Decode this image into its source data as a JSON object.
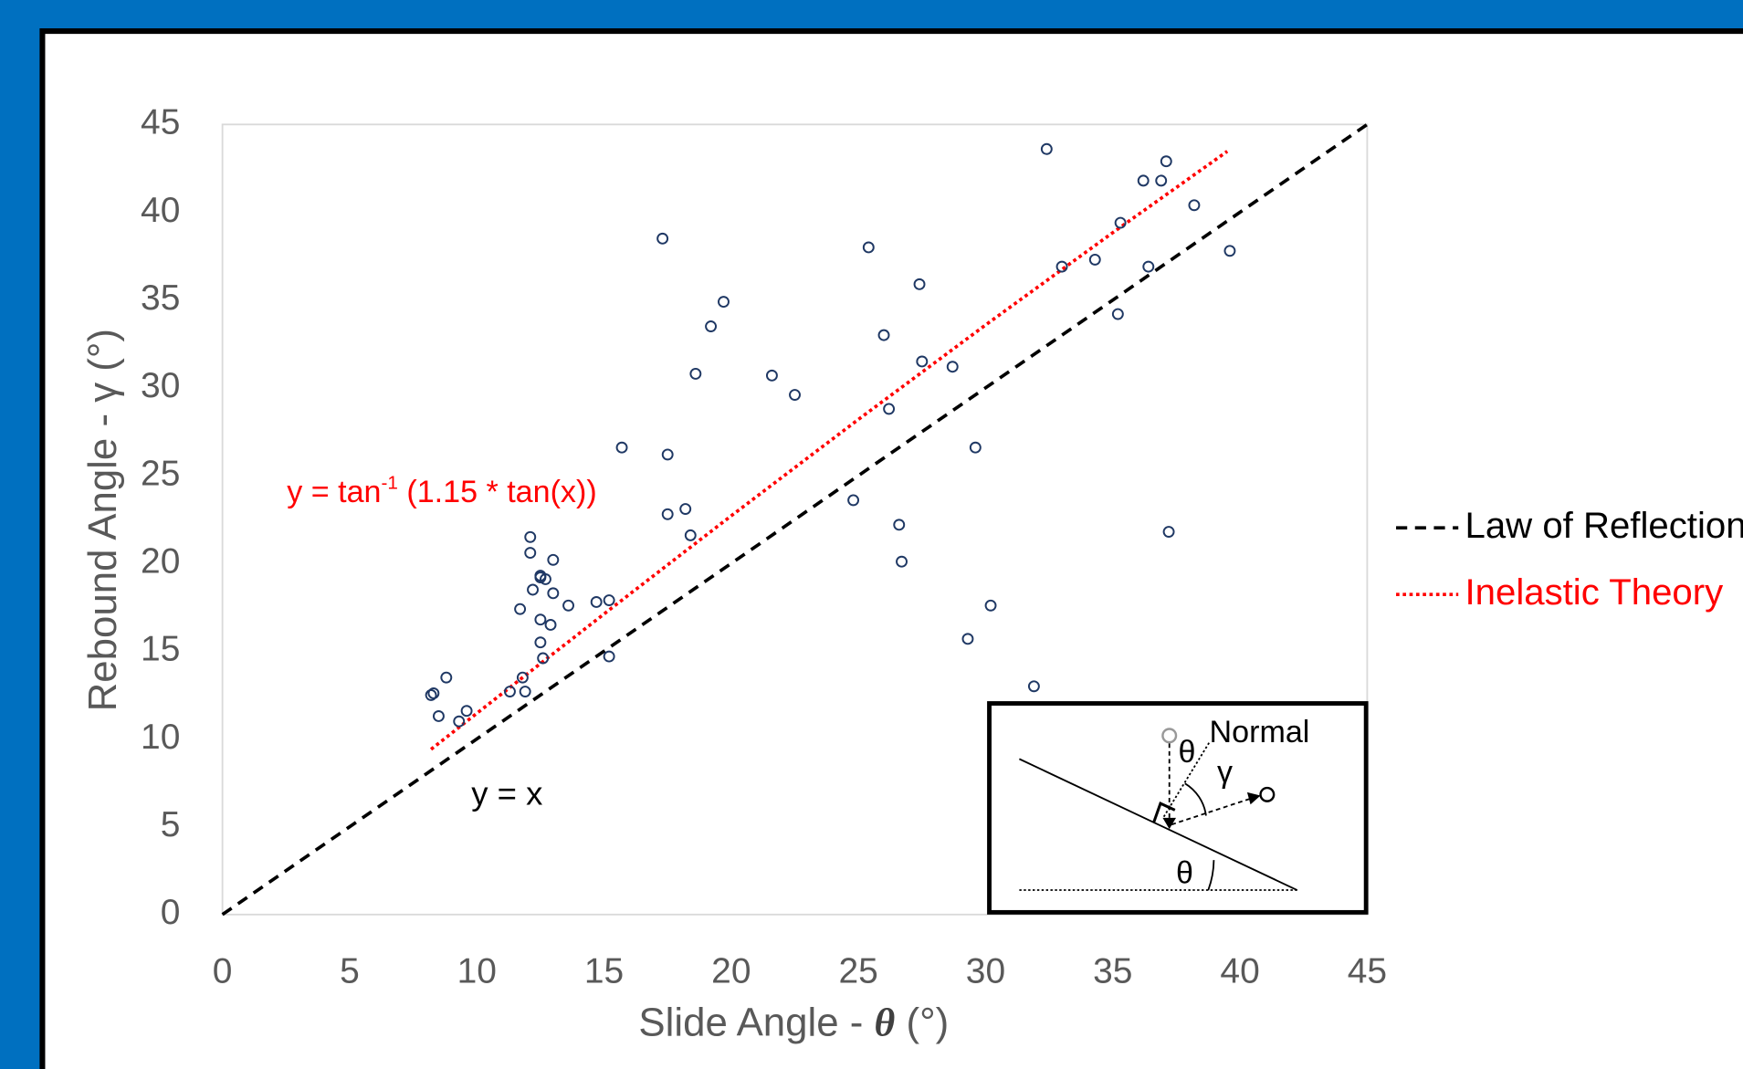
{
  "chart_data": {
    "type": "scatter",
    "xlabel": [
      "Slide Angle - ",
      "θ",
      " (°)"
    ],
    "ylabel": "Rebound Angle - γ (°)",
    "xlim": [
      0,
      45
    ],
    "ylim": [
      0,
      45
    ],
    "xticks": [
      0,
      5,
      10,
      15,
      20,
      25,
      30,
      35,
      40,
      45
    ],
    "yticks": [
      0,
      5,
      10,
      15,
      20,
      25,
      30,
      35,
      40,
      45
    ],
    "points": {
      "color": "#1f3864",
      "x": [
        8.2,
        8.3,
        8.5,
        8.8,
        9.3,
        9.6,
        11.3,
        11.7,
        11.8,
        11.9,
        12.1,
        12.1,
        12.2,
        12.5,
        12.5,
        12.7,
        12.5,
        12.5,
        12.6,
        12.9,
        13.0,
        13.0,
        13.6,
        14.7,
        15.2,
        15.2,
        15.7,
        17.3,
        17.5,
        17.5,
        18.2,
        18.4,
        18.6,
        19.2,
        19.7,
        21.6,
        22.5,
        24.8,
        25.4,
        26.0,
        26.2,
        26.6,
        26.7,
        27.4,
        27.5,
        28.7,
        29.3,
        29.6,
        30.2,
        31.9,
        32.4,
        33.0,
        34.3,
        35.2,
        35.3,
        36.2,
        36.4,
        36.9,
        37.1,
        37.2,
        38.2,
        39.6
      ],
      "y": [
        12.5,
        12.6,
        11.3,
        13.5,
        11.0,
        11.6,
        12.7,
        17.4,
        13.5,
        12.7,
        21.5,
        20.6,
        18.5,
        19.3,
        19.2,
        19.1,
        16.8,
        15.5,
        14.6,
        16.5,
        20.2,
        18.3,
        17.6,
        17.8,
        17.9,
        14.7,
        26.6,
        38.5,
        26.2,
        22.8,
        23.1,
        21.6,
        30.8,
        33.5,
        34.9,
        30.7,
        29.6,
        23.6,
        38.0,
        33.0,
        28.8,
        22.2,
        20.1,
        35.9,
        31.5,
        31.2,
        15.7,
        26.6,
        17.6,
        13.0,
        43.6,
        36.9,
        37.3,
        34.2,
        39.4,
        41.8,
        36.9,
        41.8,
        42.9,
        21.8,
        40.4,
        37.8
      ]
    },
    "lines": [
      {
        "name": "Law of Reflection",
        "color": "#000000",
        "style": "dashed",
        "x": [
          0,
          45
        ],
        "y": [
          0,
          45
        ]
      },
      {
        "name": "Inelastic Theory",
        "color": "#ff0000",
        "style": "dotted",
        "x": [
          8.2,
          10,
          15,
          20,
          25,
          30,
          35,
          39.5
        ],
        "y": [
          9.41,
          11.46,
          17.12,
          22.71,
          28.2,
          33.58,
          38.84,
          43.47
        ]
      }
    ],
    "annotations": [
      {
        "text": [
          "y = tan",
          "-1",
          " (1.15 * tan(x))"
        ],
        "color": "#ff0000"
      },
      {
        "text": "y = x",
        "color": "#000000"
      }
    ],
    "inset_labels": [
      "Normal",
      "θ",
      "γ",
      "θ"
    ]
  }
}
